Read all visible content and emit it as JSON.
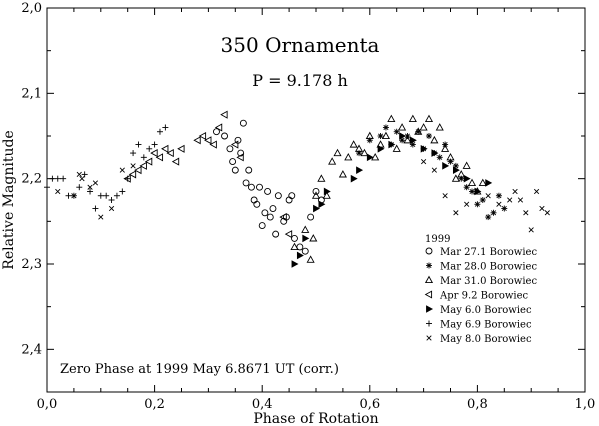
{
  "chart_data": {
    "type": "scatter",
    "title": "350 Ornamenta",
    "subtitle": "P = 9.178 h",
    "xlabel": "Phase of Rotation",
    "ylabel": "Relative Magnitude",
    "xlim": [
      0.0,
      1.0
    ],
    "ylim": [
      2.0,
      2.45
    ],
    "y_inverted": true,
    "x_ticks": [
      0.0,
      0.2,
      0.4,
      0.6,
      0.8,
      1.0
    ],
    "x_tick_labels": [
      "0,0",
      "0,2",
      "0,4",
      "0,6",
      "0,8",
      "1,0"
    ],
    "y_ticks": [
      2.0,
      2.1,
      2.2,
      2.3,
      2.4
    ],
    "y_tick_labels": [
      "2,0",
      "2,1",
      "2,2",
      "2,3",
      "2,4"
    ],
    "annotation": "Zero Phase at 1999 May 6.8671 UT (corr.)",
    "legend_title": "1999",
    "grid": false,
    "legend_position": "bottom-right",
    "series": [
      {
        "name": "Mar 27.1 Borowiec",
        "marker": "circle",
        "points": [
          [
            0.315,
            2.145
          ],
          [
            0.33,
            2.15
          ],
          [
            0.34,
            2.165
          ],
          [
            0.345,
            2.18
          ],
          [
            0.35,
            2.19
          ],
          [
            0.355,
            2.155
          ],
          [
            0.36,
            2.17
          ],
          [
            0.365,
            2.135
          ],
          [
            0.37,
            2.205
          ],
          [
            0.375,
            2.19
          ],
          [
            0.38,
            2.21
          ],
          [
            0.385,
            2.225
          ],
          [
            0.39,
            2.23
          ],
          [
            0.395,
            2.21
          ],
          [
            0.4,
            2.255
          ],
          [
            0.405,
            2.24
          ],
          [
            0.41,
            2.215
          ],
          [
            0.415,
            2.245
          ],
          [
            0.42,
            2.235
          ],
          [
            0.425,
            2.265
          ],
          [
            0.43,
            2.22
          ],
          [
            0.44,
            2.25
          ],
          [
            0.445,
            2.245
          ],
          [
            0.45,
            2.225
          ],
          [
            0.455,
            2.22
          ],
          [
            0.46,
            2.27
          ],
          [
            0.47,
            2.28
          ],
          [
            0.48,
            2.285
          ],
          [
            0.49,
            2.245
          ],
          [
            0.5,
            2.215
          ],
          [
            0.51,
            2.225
          ]
        ]
      },
      {
        "name": "Mar 28.0 Borowiec",
        "marker": "asterisk",
        "points": [
          [
            0.58,
            2.17
          ],
          [
            0.6,
            2.155
          ],
          [
            0.62,
            2.15
          ],
          [
            0.63,
            2.14
          ],
          [
            0.64,
            2.16
          ],
          [
            0.65,
            2.145
          ],
          [
            0.66,
            2.155
          ],
          [
            0.67,
            2.15
          ],
          [
            0.68,
            2.16
          ],
          [
            0.69,
            2.145
          ],
          [
            0.7,
            2.165
          ],
          [
            0.71,
            2.15
          ],
          [
            0.72,
            2.17
          ],
          [
            0.73,
            2.175
          ],
          [
            0.74,
            2.16
          ],
          [
            0.75,
            2.18
          ],
          [
            0.76,
            2.185
          ],
          [
            0.77,
            2.2
          ],
          [
            0.78,
            2.21
          ],
          [
            0.79,
            2.215
          ],
          [
            0.8,
            2.23
          ],
          [
            0.81,
            2.225
          ],
          [
            0.82,
            2.245
          ],
          [
            0.83,
            2.24
          ],
          [
            0.84,
            2.22
          ],
          [
            0.85,
            2.235
          ]
        ]
      },
      {
        "name": "Mar 31.0 Borowiec",
        "marker": "triangle",
        "points": [
          [
            0.46,
            2.28
          ],
          [
            0.48,
            2.26
          ],
          [
            0.5,
            2.22
          ],
          [
            0.51,
            2.2
          ],
          [
            0.52,
            2.22
          ],
          [
            0.53,
            2.18
          ],
          [
            0.54,
            2.17
          ],
          [
            0.55,
            2.195
          ],
          [
            0.56,
            2.175
          ],
          [
            0.57,
            2.16
          ],
          [
            0.58,
            2.165
          ],
          [
            0.59,
            2.17
          ],
          [
            0.6,
            2.15
          ],
          [
            0.61,
            2.175
          ],
          [
            0.62,
            2.16
          ],
          [
            0.63,
            2.15
          ],
          [
            0.64,
            2.13
          ],
          [
            0.65,
            2.165
          ],
          [
            0.66,
            2.14
          ],
          [
            0.67,
            2.155
          ],
          [
            0.68,
            2.13
          ],
          [
            0.69,
            2.145
          ],
          [
            0.7,
            2.14
          ],
          [
            0.71,
            2.13
          ],
          [
            0.72,
            2.155
          ],
          [
            0.73,
            2.14
          ],
          [
            0.74,
            2.165
          ],
          [
            0.75,
            2.175
          ],
          [
            0.76,
            2.2
          ],
          [
            0.77,
            2.195
          ],
          [
            0.78,
            2.185
          ],
          [
            0.79,
            2.205
          ],
          [
            0.8,
            2.215
          ],
          [
            0.81,
            2.205
          ],
          [
            0.49,
            2.295
          ],
          [
            0.495,
            2.27
          ]
        ]
      },
      {
        "name": "Apr 9.2 Borowiec",
        "marker": "triangle-left",
        "points": [
          [
            0.19,
            2.18
          ],
          [
            0.2,
            2.17
          ],
          [
            0.21,
            2.175
          ],
          [
            0.22,
            2.165
          ],
          [
            0.23,
            2.17
          ],
          [
            0.24,
            2.18
          ],
          [
            0.25,
            2.165
          ],
          [
            0.18,
            2.185
          ],
          [
            0.17,
            2.19
          ],
          [
            0.16,
            2.195
          ],
          [
            0.15,
            2.2
          ],
          [
            0.3,
            2.155
          ],
          [
            0.31,
            2.16
          ],
          [
            0.32,
            2.14
          ],
          [
            0.33,
            2.125
          ],
          [
            0.35,
            2.16
          ],
          [
            0.36,
            2.175
          ],
          [
            0.28,
            2.155
          ],
          [
            0.29,
            2.15
          ],
          [
            0.44,
            2.245
          ],
          [
            0.45,
            2.265
          ]
        ]
      },
      {
        "name": "May 6.0 Borowiec",
        "marker": "triangle-right",
        "points": [
          [
            0.46,
            2.3
          ],
          [
            0.47,
            2.29
          ],
          [
            0.48,
            2.27
          ],
          [
            0.5,
            2.235
          ],
          [
            0.51,
            2.23
          ],
          [
            0.52,
            2.215
          ],
          [
            0.57,
            2.2
          ],
          [
            0.58,
            2.19
          ],
          [
            0.6,
            2.175
          ],
          [
            0.62,
            2.165
          ],
          [
            0.64,
            2.16
          ],
          [
            0.66,
            2.15
          ],
          [
            0.68,
            2.155
          ],
          [
            0.7,
            2.165
          ],
          [
            0.72,
            2.17
          ],
          [
            0.74,
            2.185
          ],
          [
            0.76,
            2.19
          ],
          [
            0.78,
            2.2
          ],
          [
            0.8,
            2.215
          ],
          [
            0.82,
            2.205
          ]
        ]
      },
      {
        "name": "May 6.9 Borowiec",
        "marker": "plus",
        "points": [
          [
            0.0,
            2.21
          ],
          [
            0.01,
            2.2
          ],
          [
            0.02,
            2.2
          ],
          [
            0.03,
            2.2
          ],
          [
            0.04,
            2.22
          ],
          [
            0.05,
            2.22
          ],
          [
            0.06,
            2.21
          ],
          [
            0.07,
            2.195
          ],
          [
            0.08,
            2.215
          ],
          [
            0.09,
            2.235
          ],
          [
            0.1,
            2.22
          ],
          [
            0.11,
            2.22
          ],
          [
            0.12,
            2.225
          ],
          [
            0.13,
            2.22
          ],
          [
            0.14,
            2.215
          ],
          [
            0.15,
            2.2
          ],
          [
            0.16,
            2.17
          ],
          [
            0.17,
            2.16
          ],
          [
            0.18,
            2.175
          ],
          [
            0.19,
            2.165
          ],
          [
            0.2,
            2.16
          ],
          [
            0.21,
            2.145
          ],
          [
            0.22,
            2.14
          ]
        ]
      },
      {
        "name": "May 8.0 Borowiec",
        "marker": "x",
        "points": [
          [
            0.02,
            2.215
          ],
          [
            0.05,
            2.22
          ],
          [
            0.06,
            2.195
          ],
          [
            0.065,
            2.2
          ],
          [
            0.08,
            2.21
          ],
          [
            0.09,
            2.205
          ],
          [
            0.1,
            2.245
          ],
          [
            0.12,
            2.235
          ],
          [
            0.14,
            2.19
          ],
          [
            0.16,
            2.185
          ],
          [
            0.86,
            2.225
          ],
          [
            0.87,
            2.215
          ],
          [
            0.88,
            2.225
          ],
          [
            0.89,
            2.24
          ],
          [
            0.9,
            2.26
          ],
          [
            0.91,
            2.215
          ],
          [
            0.92,
            2.235
          ],
          [
            0.93,
            2.24
          ],
          [
            0.84,
            2.23
          ],
          [
            0.82,
            2.22
          ],
          [
            0.78,
            2.23
          ],
          [
            0.76,
            2.24
          ],
          [
            0.74,
            2.22
          ],
          [
            0.72,
            2.19
          ],
          [
            0.7,
            2.18
          ]
        ]
      }
    ]
  }
}
